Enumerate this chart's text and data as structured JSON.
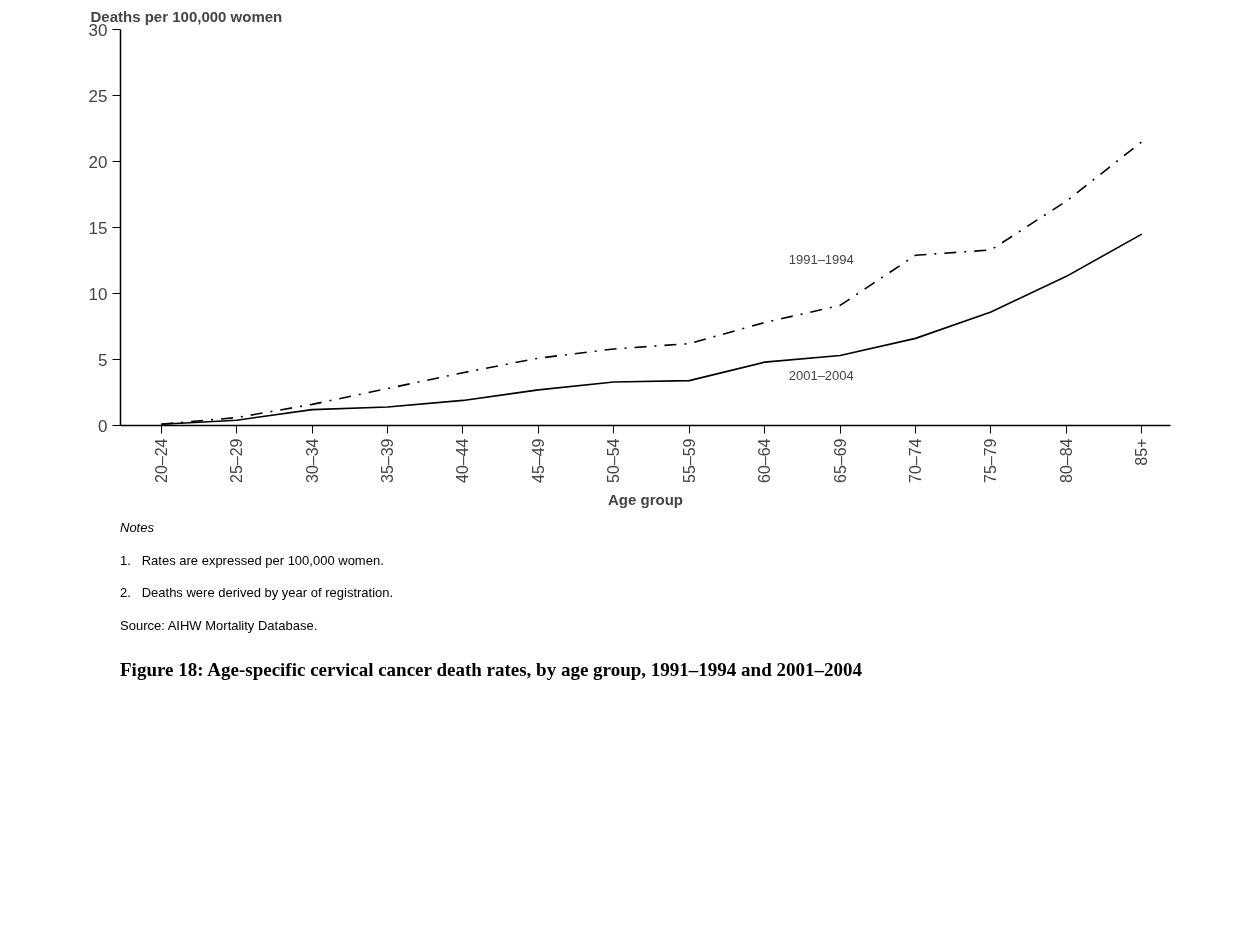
{
  "chart_data": {
    "type": "line",
    "title": "Figure 18: Age-specific cervical cancer death rates, by age group, 1991–1994 and 2001–2004",
    "ylabel": "Deaths per 100,000 women",
    "xlabel": "Age group",
    "categories": [
      "20–24",
      "25–29",
      "30–34",
      "35–39",
      "40–44",
      "45–49",
      "50–54",
      "55–59",
      "60–64",
      "65–69",
      "70–74",
      "75–79",
      "80–84",
      "85+"
    ],
    "series": [
      {
        "name": "1991–1994",
        "color": "#000000",
        "line_style": "dashed",
        "values": [
          0.1,
          0.6,
          1.6,
          2.8,
          4.0,
          5.1,
          5.8,
          6.2,
          7.8,
          9.1,
          12.9,
          13.3,
          17.0,
          21.5
        ]
      },
      {
        "name": "2001–2004",
        "color": "#000000",
        "line_style": "solid",
        "values": [
          0.1,
          0.4,
          1.2,
          1.4,
          1.9,
          2.7,
          3.3,
          3.4,
          4.8,
          5.3,
          6.6,
          8.6,
          11.3,
          14.5
        ]
      }
    ],
    "ylim": [
      0,
      30
    ],
    "yticks": [
      0,
      5,
      10,
      15,
      20,
      25,
      30
    ],
    "grid": false,
    "marker": "none",
    "annotations": [
      "Notes",
      "1.   Rates are expressed per 100,000 women.",
      "2.   Deaths were derived by year of registration.",
      "Source: AIHW Mortality Database."
    ]
  }
}
